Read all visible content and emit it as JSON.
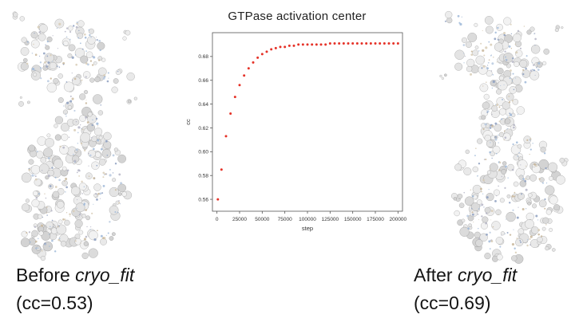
{
  "title": "GTPase activation center",
  "left_panel": {
    "structure_alt": "cryo-EM density map before fitting",
    "label_prefix": "Before ",
    "label_italic": "cryo_fit",
    "cc_text": "(cc=0.53)"
  },
  "right_panel": {
    "structure_alt": "cryo-EM density map after fitting",
    "label_prefix": "After ",
    "label_italic": "cryo_fit",
    "cc_text": "(cc=0.69)"
  },
  "colors": {
    "marker": "#e53228",
    "spine": "#555555",
    "tick_text": "#333333"
  },
  "chart_data": {
    "type": "scatter",
    "title": "GTPase activation center",
    "xlabel": "step",
    "ylabel": "cc",
    "xlim": [
      -5000,
      205000
    ],
    "ylim": [
      0.55,
      0.7
    ],
    "xticks": [
      0,
      25000,
      50000,
      75000,
      100000,
      125000,
      150000,
      175000,
      200000
    ],
    "yticks": [
      0.56,
      0.58,
      0.6,
      0.62,
      0.64,
      0.66,
      0.68
    ],
    "grid": false,
    "legend": "none",
    "marker_color": "#e53228",
    "series": [
      {
        "name": "cc",
        "x": [
          1000,
          5000,
          10000,
          15000,
          20000,
          25000,
          30000,
          35000,
          40000,
          45000,
          50000,
          55000,
          60000,
          65000,
          70000,
          75000,
          80000,
          85000,
          90000,
          95000,
          100000,
          105000,
          110000,
          115000,
          120000,
          125000,
          130000,
          135000,
          140000,
          145000,
          150000,
          155000,
          160000,
          165000,
          170000,
          175000,
          180000,
          185000,
          190000,
          195000,
          200000
        ],
        "y": [
          0.56,
          0.585,
          0.613,
          0.632,
          0.646,
          0.656,
          0.664,
          0.67,
          0.675,
          0.679,
          0.682,
          0.684,
          0.686,
          0.687,
          0.688,
          0.688,
          0.689,
          0.689,
          0.69,
          0.69,
          0.69,
          0.69,
          0.69,
          0.69,
          0.69,
          0.691,
          0.691,
          0.691,
          0.691,
          0.691,
          0.691,
          0.691,
          0.691,
          0.691,
          0.691,
          0.691,
          0.691,
          0.691,
          0.691,
          0.691,
          0.691
        ]
      }
    ]
  }
}
